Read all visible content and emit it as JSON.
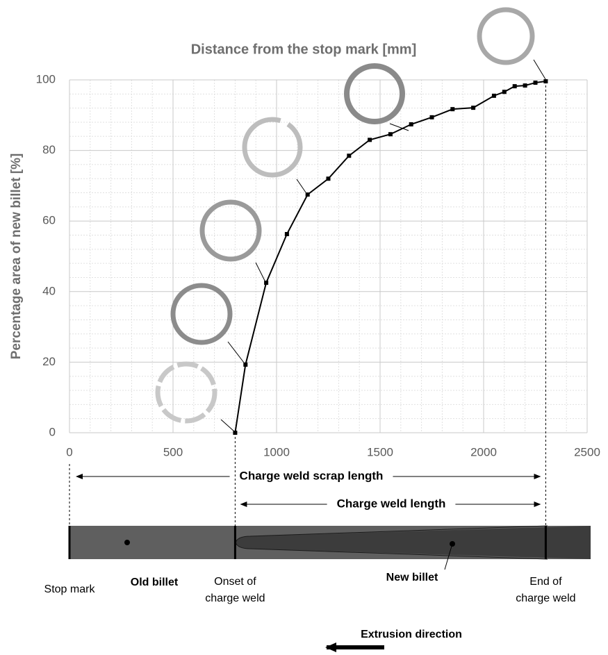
{
  "chart_data": {
    "type": "line",
    "title": "Distance from the stop mark [mm]",
    "ylabel": "Percentage area of new billet [%]",
    "x": [
      800,
      850,
      950,
      1050,
      1150,
      1250,
      1350,
      1450,
      1550,
      1650,
      1750,
      1850,
      1950,
      2050,
      2100,
      2150,
      2200,
      2250,
      2300
    ],
    "values": [
      0,
      19.3,
      42.5,
      56.3,
      67.5,
      72,
      78.5,
      83,
      84.6,
      87.4,
      89.4,
      91.7,
      92.1,
      95.5,
      96.6,
      98.2,
      98.4,
      99.2,
      99.6
    ],
    "color": "#000000",
    "xlim": [
      0,
      2500
    ],
    "xticks": [
      0,
      500,
      1000,
      1500,
      2000,
      2500
    ],
    "ylim": [
      0,
      100
    ],
    "yticks": [
      0,
      20,
      40,
      60,
      80,
      100
    ],
    "grid": true,
    "annotations": {
      "scrap_length": "Charge weld scrap length",
      "weld_length": "Charge weld length",
      "stop_mark": "Stop mark",
      "old_billet": "Old billet",
      "onset": [
        "Onset of",
        "charge weld"
      ],
      "new_billet": "New billet",
      "end": [
        "End of",
        "charge weld"
      ],
      "extrusion": "Extrusion direction"
    }
  }
}
